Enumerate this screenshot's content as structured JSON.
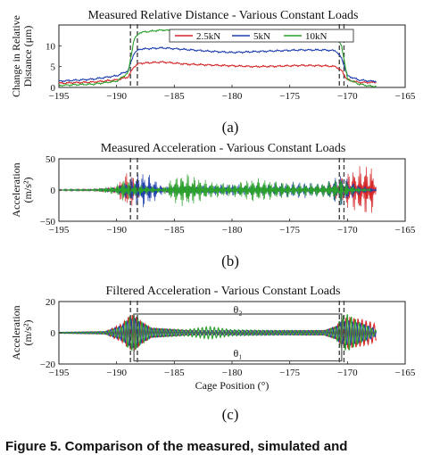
{
  "figure": {
    "caption_text": "Figure 5. Comparison of the measured, simulated and"
  },
  "chart_data": [
    {
      "type": "line",
      "panel_label": "(a)",
      "title": "Measured Relative Distance - Various Constant Loads",
      "xlabel": "",
      "ylabel_line1": "Change in Relative",
      "ylabel_line2": "Distance (μm)",
      "xlim": [
        -195,
        -165
      ],
      "ylim": [
        0,
        15
      ],
      "xticks": [
        -195,
        -190,
        -185,
        -180,
        -175,
        -170,
        -165
      ],
      "yticks": [
        0,
        5,
        10
      ],
      "legend": {
        "placement": "top-center",
        "entries": [
          "2.5kN",
          "5kN",
          "10kN"
        ]
      },
      "dashed_markers": [
        -188.8,
        -188.2,
        -170.7,
        -170.3
      ],
      "series": [
        {
          "name": "2.5kN",
          "color": "#d62728",
          "x": [
            -195,
            -192,
            -190,
            -189,
            -188.5,
            -188,
            -186,
            -184,
            -182,
            -180,
            -178,
            -176,
            -174,
            -172,
            -171,
            -170.5,
            -170,
            -169,
            -168,
            -167.5
          ],
          "y": [
            1.0,
            1.3,
            1.8,
            2.5,
            5.0,
            5.8,
            6.1,
            5.6,
            5.4,
            5.2,
            5.0,
            5.1,
            5.3,
            5.2,
            5.0,
            4.0,
            1.8,
            1.2,
            1.2,
            1.2
          ]
        },
        {
          "name": "5kN",
          "color": "#1f3fae",
          "x": [
            -195,
            -192,
            -190,
            -189,
            -188.5,
            -188,
            -186,
            -184,
            -182,
            -180,
            -178,
            -176,
            -174,
            -172,
            -171,
            -170.5,
            -170,
            -169,
            -168,
            -167.5
          ],
          "y": [
            1.5,
            2.0,
            2.8,
            4.0,
            8.2,
            9.2,
            9.5,
            9.1,
            8.7,
            8.4,
            8.6,
            8.8,
            9.0,
            9.0,
            8.8,
            7.0,
            2.8,
            1.8,
            1.5,
            1.5
          ]
        },
        {
          "name": "10kN",
          "color": "#2ca02c",
          "x": [
            -195,
            -192,
            -190,
            -189,
            -188.5,
            -188,
            -186,
            -184,
            -182,
            -180,
            -178,
            -176,
            -174,
            -172,
            -171,
            -170.5,
            -170,
            -169,
            -168,
            -167.5
          ],
          "y": [
            0.5,
            0.8,
            1.5,
            3.5,
            11.5,
            13.2,
            13.8,
            13.3,
            12.8,
            12.6,
            12.5,
            12.5,
            12.4,
            12.4,
            12.2,
            10.0,
            2.0,
            0.8,
            0.3,
            0.3
          ]
        }
      ]
    },
    {
      "type": "line",
      "panel_label": "(b)",
      "title": "Measured Acceleration - Various Constant Loads",
      "xlabel": "",
      "ylabel_line1": "Acceleration",
      "ylabel_line2": "(m/s²)",
      "xlim": [
        -195,
        -165
      ],
      "ylim": [
        -50,
        50
      ],
      "xticks": [
        -195,
        -190,
        -185,
        -180,
        -175,
        -170,
        -165
      ],
      "yticks": [
        -50,
        0,
        50
      ],
      "dashed_markers": [
        -188.8,
        -188.2,
        -170.7,
        -170.3
      ],
      "series": [
        {
          "name": "2.5kN",
          "color": "#d62728",
          "x": [
            -195,
            -192,
            -190,
            -189.5,
            -189,
            -188.5,
            -188,
            -187,
            -184,
            -182,
            -180,
            -178,
            -176,
            -174,
            -172,
            -171,
            -170.5,
            -170,
            -169,
            -168,
            -167.5
          ],
          "amp": [
            1,
            2,
            6,
            22,
            30,
            24,
            10,
            5,
            4,
            4,
            3,
            3,
            4,
            4,
            6,
            14,
            20,
            30,
            38,
            44,
            20
          ]
        },
        {
          "name": "5kN",
          "color": "#1f3fae",
          "x": [
            -195,
            -192,
            -190,
            -189.5,
            -189,
            -188.5,
            -188,
            -187,
            -186,
            -184,
            -182,
            -180,
            -178,
            -176,
            -174,
            -172,
            -171,
            -170.5,
            -170,
            -169,
            -168,
            -167.5
          ],
          "amp": [
            1,
            2,
            5,
            12,
            16,
            24,
            32,
            24,
            6,
            6,
            8,
            10,
            8,
            12,
            14,
            10,
            22,
            28,
            18,
            8,
            4,
            2
          ]
        },
        {
          "name": "10kN",
          "color": "#2ca02c",
          "x": [
            -195,
            -192,
            -190,
            -189.5,
            -189,
            -188.5,
            -188,
            -187,
            -186,
            -185,
            -184,
            -182,
            -180,
            -178,
            -176,
            -174,
            -172,
            -171,
            -170.5,
            -170,
            -169,
            -168
          ],
          "amp": [
            1,
            2,
            8,
            18,
            16,
            12,
            10,
            6,
            4,
            22,
            28,
            14,
            10,
            20,
            14,
            10,
            12,
            18,
            24,
            10,
            4,
            2
          ]
        }
      ]
    },
    {
      "type": "line",
      "panel_label": "(c)",
      "title": "Filtered Acceleration - Various Constant Loads",
      "xlabel": "Cage Position (°)",
      "ylabel_line1": "Acceleration",
      "ylabel_line2": "(m/s²)",
      "xlim": [
        -195,
        -165
      ],
      "ylim": [
        -20,
        20
      ],
      "xticks": [
        -195,
        -190,
        -185,
        -180,
        -175,
        -170,
        -165
      ],
      "yticks": [
        -20,
        0,
        20
      ],
      "dashed_markers": [
        -188.8,
        -188.2,
        -170.7,
        -170.3
      ],
      "annotations": [
        {
          "text": "θ₂",
          "x": -179.5,
          "y": 15,
          "box_x": [
            -188.5,
            -170.5
          ],
          "box_y": 12
        },
        {
          "text": "θ₁",
          "x": -179.5,
          "y": -13,
          "box_x": [
            -188.5,
            -170.5
          ],
          "box_y": -18
        }
      ],
      "series": [
        {
          "name": "2.5kN",
          "color": "#d62728",
          "x": [
            -195,
            -191,
            -189.5,
            -189,
            -188.5,
            -188,
            -187,
            -184,
            -180,
            -176,
            -172,
            -171,
            -170.5,
            -170,
            -169,
            -168,
            -167.5
          ],
          "amp": [
            0.3,
            0.8,
            6,
            10,
            12,
            8,
            3,
            1.5,
            1.2,
            1.2,
            1.5,
            4,
            8,
            10,
            9,
            7,
            5
          ]
        },
        {
          "name": "5kN",
          "color": "#1f3fae",
          "x": [
            -195,
            -191,
            -189.5,
            -189,
            -188.5,
            -188,
            -187,
            -184,
            -180,
            -176,
            -172,
            -171,
            -170.5,
            -170,
            -169,
            -168,
            -167.5
          ],
          "amp": [
            0.3,
            0.8,
            5,
            8,
            10,
            7,
            3,
            1.5,
            1.5,
            1.5,
            1.5,
            4,
            7,
            8,
            6,
            4,
            2
          ]
        },
        {
          "name": "10kN",
          "color": "#2ca02c",
          "x": [
            -195,
            -191,
            -189.5,
            -189,
            -188.5,
            -188,
            -187,
            -184,
            -182,
            -180,
            -176,
            -172,
            -171,
            -170.5,
            -170,
            -169,
            -168,
            -167.5
          ],
          "amp": [
            0.3,
            0.8,
            4,
            10,
            12,
            8,
            3,
            2,
            4,
            2,
            1.5,
            1.5,
            4,
            10,
            12,
            7,
            3,
            1.5
          ]
        }
      ]
    }
  ]
}
